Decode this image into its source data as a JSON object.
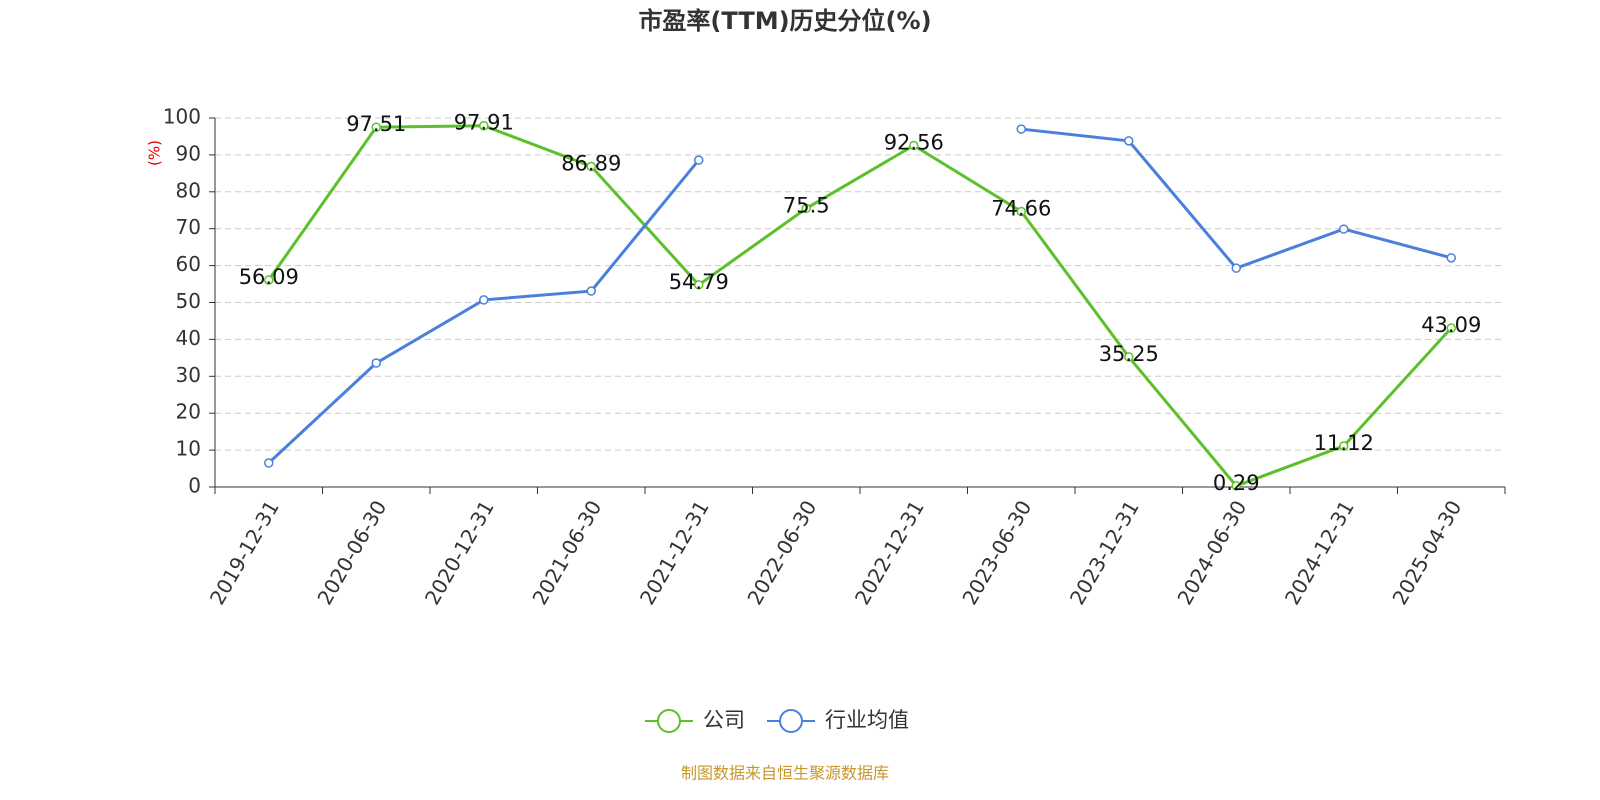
{
  "chart_data": {
    "type": "line",
    "title": "市盈率(TTM)历史分位(%)",
    "y_label": "(%)",
    "categories": [
      "2019-12-31",
      "2020-06-30",
      "2020-12-31",
      "2021-06-30",
      "2021-12-31",
      "2022-06-30",
      "2022-12-31",
      "2023-06-30",
      "2023-12-31",
      "2024-06-30",
      "2024-12-31",
      "2025-04-30"
    ],
    "series": [
      {
        "name": "公司",
        "color": "#5cc02a",
        "values": [
          56.09,
          97.51,
          97.91,
          86.89,
          54.79,
          75.5,
          92.56,
          74.66,
          35.25,
          0.29,
          11.12,
          43.09
        ],
        "show_labels": true
      },
      {
        "name": "行业均值",
        "color": "#4a80dc",
        "values": [
          6.5,
          33.6,
          50.7,
          53.1,
          88.6,
          null,
          null,
          97.0,
          93.8,
          59.3,
          69.9,
          62.1
        ],
        "show_labels": false
      }
    ],
    "ylim": [
      0,
      100
    ],
    "yticks": [
      0,
      10,
      20,
      30,
      40,
      50,
      60,
      70,
      80,
      90,
      100
    ],
    "grid": true,
    "source": "制图数据来自恒生聚源数据库"
  }
}
